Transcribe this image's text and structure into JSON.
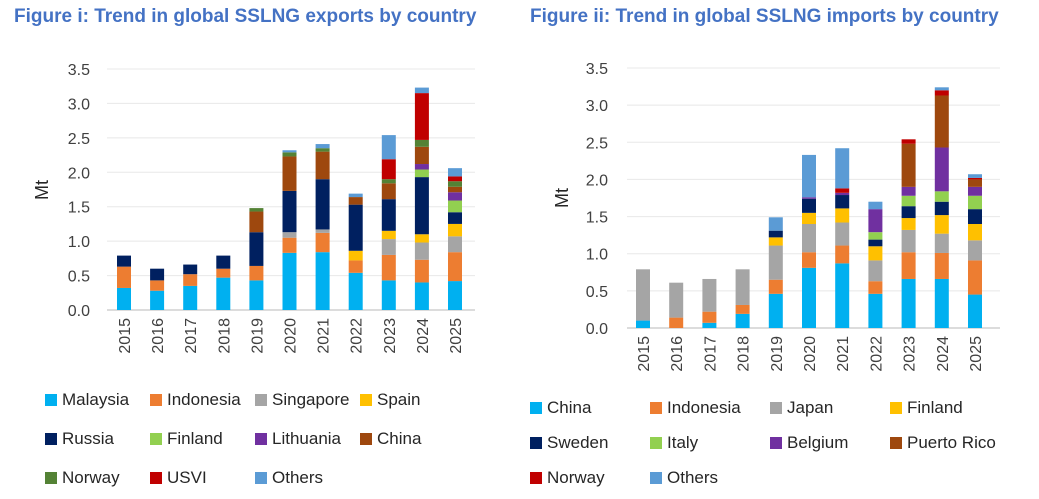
{
  "chart_data": [
    {
      "type": "bar",
      "stacked": true,
      "title": "Figure i: Trend in global SSLNG exports by country",
      "xlabel": "",
      "ylabel": "Mt",
      "ylim": [
        0,
        3.5
      ],
      "yticks": [
        "0.0",
        "0.5",
        "1.0",
        "1.5",
        "2.0",
        "2.5",
        "3.0",
        "3.5"
      ],
      "grid": true,
      "legend_position": "bottom",
      "categories": [
        "2015",
        "2016",
        "2017",
        "2018",
        "2019",
        "2020",
        "2021",
        "2022",
        "2023",
        "2024",
        "2025"
      ],
      "series": [
        {
          "name": "Malaysia",
          "color": "#00B0F0",
          "values": [
            0.32,
            0.28,
            0.35,
            0.47,
            0.43,
            0.83,
            0.84,
            0.54,
            0.43,
            0.4,
            0.42
          ]
        },
        {
          "name": "Indonesia",
          "color": "#ED7D31",
          "values": [
            0.31,
            0.15,
            0.17,
            0.13,
            0.21,
            0.22,
            0.28,
            0.18,
            0.37,
            0.33,
            0.42
          ]
        },
        {
          "name": "Singapore",
          "color": "#A5A5A5",
          "values": [
            0,
            0,
            0,
            0,
            0,
            0.08,
            0.05,
            0,
            0.23,
            0.25,
            0.23
          ]
        },
        {
          "name": "Spain",
          "color": "#FFC000",
          "values": [
            0,
            0,
            0,
            0,
            0,
            0,
            0,
            0.14,
            0.12,
            0.12,
            0.18
          ]
        },
        {
          "name": "Russia",
          "color": "#002060",
          "values": [
            0.16,
            0.17,
            0.14,
            0.19,
            0.49,
            0.6,
            0.73,
            0.67,
            0.46,
            0.83,
            0.17
          ]
        },
        {
          "name": "Finland",
          "color": "#92D050",
          "values": [
            0,
            0,
            0,
            0,
            0,
            0,
            0,
            0,
            0,
            0.11,
            0.17
          ]
        },
        {
          "name": "Lithuania",
          "color": "#7030A0",
          "values": [
            0,
            0,
            0,
            0,
            0,
            0,
            0,
            0,
            0,
            0.08,
            0.12
          ]
        },
        {
          "name": "China",
          "color": "#9E480E",
          "values": [
            0,
            0,
            0,
            0,
            0.3,
            0.5,
            0.4,
            0.11,
            0.23,
            0.25,
            0.08
          ]
        },
        {
          "name": "Norway",
          "color": "#548235",
          "values": [
            0,
            0,
            0,
            0,
            0.05,
            0.06,
            0.05,
            0,
            0.06,
            0.1,
            0.08
          ]
        },
        {
          "name": "USVI",
          "color": "#C00000",
          "values": [
            0,
            0,
            0,
            0,
            0,
            0,
            0,
            0,
            0.29,
            0.68,
            0.07
          ]
        },
        {
          "name": "Others",
          "color": "#5B9BD5",
          "values": [
            0,
            0,
            0,
            0,
            0,
            0.03,
            0.06,
            0.05,
            0.35,
            0.08,
            0.12
          ]
        }
      ]
    },
    {
      "type": "bar",
      "stacked": true,
      "title": "Figure ii: Trend in global SSLNG imports by country",
      "xlabel": "",
      "ylabel": "Mt",
      "ylim": [
        0,
        3.5
      ],
      "yticks": [
        "0.0",
        "0.5",
        "1.0",
        "1.5",
        "2.0",
        "2.5",
        "3.0",
        "3.5"
      ],
      "grid": true,
      "legend_position": "bottom",
      "categories": [
        "2015",
        "2016",
        "2017",
        "2018",
        "2019",
        "2020",
        "2021",
        "2022",
        "2023",
        "2024",
        "2025"
      ],
      "series": [
        {
          "name": "China",
          "color": "#00B0F0",
          "values": [
            0.1,
            0,
            0.07,
            0.19,
            0.46,
            0.81,
            0.87,
            0.46,
            0.66,
            0.66,
            0.45
          ]
        },
        {
          "name": "Indonesia",
          "color": "#ED7D31",
          "values": [
            0,
            0.14,
            0.15,
            0.12,
            0.19,
            0.21,
            0.24,
            0.17,
            0.36,
            0.35,
            0.46
          ]
        },
        {
          "name": "Japan",
          "color": "#A5A5A5",
          "values": [
            0.69,
            0.47,
            0.44,
            0.48,
            0.46,
            0.38,
            0.31,
            0.28,
            0.3,
            0.26,
            0.27
          ]
        },
        {
          "name": "Finland",
          "color": "#FFC000",
          "values": [
            0,
            0,
            0,
            0,
            0.11,
            0.15,
            0.19,
            0.19,
            0.16,
            0.25,
            0.22
          ]
        },
        {
          "name": "Sweden",
          "color": "#002060",
          "values": [
            0,
            0,
            0,
            0,
            0.09,
            0.19,
            0.18,
            0.09,
            0.16,
            0.18,
            0.2
          ]
        },
        {
          "name": "Italy",
          "color": "#92D050",
          "values": [
            0,
            0,
            0,
            0,
            0,
            0,
            0,
            0.1,
            0.14,
            0.14,
            0.18
          ]
        },
        {
          "name": "Belgium",
          "color": "#7030A0",
          "values": [
            0,
            0,
            0,
            0,
            0,
            0.02,
            0.03,
            0.31,
            0.12,
            0.59,
            0.12
          ]
        },
        {
          "name": "Puerto Rico",
          "color": "#9E480E",
          "values": [
            0,
            0,
            0,
            0,
            0,
            0,
            0,
            0,
            0.58,
            0.7,
            0.1
          ]
        },
        {
          "name": "Norway",
          "color": "#C00000",
          "values": [
            0,
            0,
            0,
            0,
            0,
            0,
            0.06,
            0,
            0.06,
            0.07,
            0.02
          ]
        },
        {
          "name": "Others",
          "color": "#5B9BD5",
          "values": [
            0,
            0,
            0,
            0,
            0.18,
            0.57,
            0.54,
            0.1,
            0,
            0.04,
            0.05
          ]
        }
      ]
    }
  ]
}
